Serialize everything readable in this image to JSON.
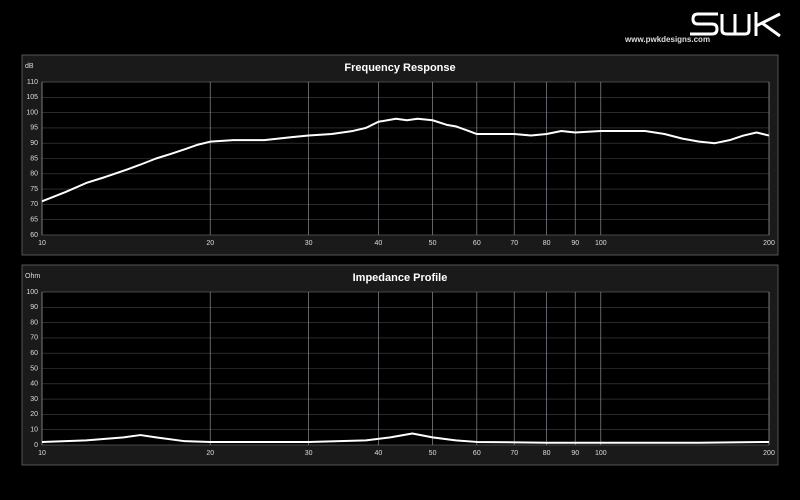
{
  "header": {
    "website": "www.pwkdesigns.com"
  },
  "chart_data": [
    {
      "type": "line",
      "title": "Frequency Response",
      "ylabel": "dB",
      "xscale": "log",
      "grid": true,
      "color": "#ffffff",
      "x": [
        10,
        11,
        12,
        13,
        14,
        15,
        16,
        17,
        18,
        19,
        20,
        22,
        25,
        28,
        30,
        33,
        36,
        38,
        40,
        43,
        45,
        47,
        50,
        53,
        55,
        58,
        60,
        65,
        70,
        75,
        80,
        85,
        90,
        100,
        110,
        120,
        130,
        140,
        150,
        160,
        170,
        180,
        190,
        200
      ],
      "values": [
        71,
        74,
        77,
        79,
        81,
        83,
        85,
        86.5,
        88,
        89.5,
        90.5,
        91,
        91,
        92,
        92.5,
        93,
        94,
        95,
        97,
        98,
        97.5,
        98,
        97.5,
        96,
        95.5,
        94,
        93,
        93,
        93,
        92.5,
        93,
        94,
        93.5,
        94,
        94,
        94,
        93,
        91.5,
        90.5,
        90,
        91,
        92.5,
        93.5,
        92.5
      ],
      "xlim": [
        10,
        200
      ],
      "xticks": [
        10,
        20,
        30,
        40,
        50,
        60,
        70,
        80,
        90,
        100,
        200
      ],
      "ylim": [
        60,
        110
      ],
      "yticks": [
        60,
        65,
        70,
        75,
        80,
        85,
        90,
        95,
        100,
        105,
        110
      ]
    },
    {
      "type": "line",
      "title": "Impedance Profile",
      "ylabel": "Ohm",
      "xscale": "log",
      "grid": true,
      "color": "#ffffff",
      "x": [
        10,
        12,
        14,
        15,
        16,
        18,
        20,
        30,
        38,
        42,
        46,
        50,
        55,
        60,
        80,
        100,
        150,
        200
      ],
      "values": [
        2,
        3,
        5,
        6.5,
        5,
        2.5,
        2,
        2,
        3,
        5,
        7.5,
        5,
        3,
        2,
        1.5,
        1.5,
        1.5,
        2
      ],
      "xlim": [
        10,
        200
      ],
      "xticks": [
        10,
        20,
        30,
        40,
        50,
        60,
        70,
        80,
        90,
        100,
        200
      ],
      "ylim": [
        0,
        100
      ],
      "yticks": [
        0,
        10,
        20,
        30,
        40,
        50,
        60,
        70,
        80,
        90,
        100
      ]
    }
  ]
}
